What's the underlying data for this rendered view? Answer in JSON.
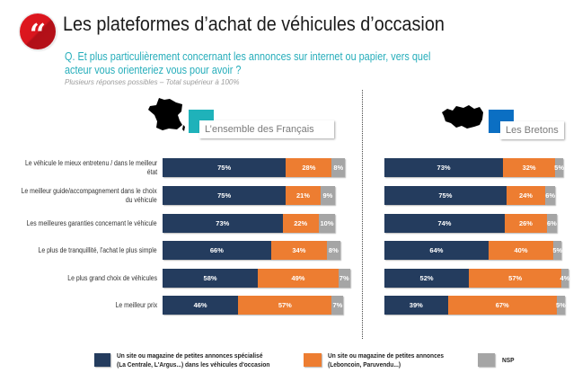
{
  "header": {
    "icon": "quote-icon",
    "title": "Les plateformes d’achat de véhicules d’occasion",
    "question_lines": [
      "Q. Et plus particulièrement concernant les annonces sur internet ou papier, vers quel",
      "acteur vous orienteriez vous pour avoir ?"
    ],
    "note": "Plusieurs réponses possibles – Total supérieur à 100%"
  },
  "panel_headers": [
    {
      "map_icon": "france-map-icon",
      "accent_color": "#1fb2ba"
    },
    {
      "map_icon": "brittany-map-icon",
      "accent_color": "#0b6fc3"
    }
  ],
  "chart_data": {
    "type": "bar",
    "orientation": "horizontal",
    "stacked": true,
    "value_suffix": "%",
    "categories": [
      "Le véhicule le mieux entretenu / dans le meilleur\nétat",
      "Le meilleur guide/accompagnement dans le choix\ndu véhicule",
      "Les meilleures garanties concernant le véhicule",
      "Le plus de tranquillité, l'achat le plus simple",
      "Le plus grand choix de véhicules",
      "Le meilleur prix"
    ],
    "series": [
      {
        "name": "Un site ou magazine de petites annonces spécialisé\n(La Centrale, L'Argus...) dans les véhicules d'occasion",
        "color": "#243c5e"
      },
      {
        "name": "Un site ou magazine de petites annonces\n(Leboncoin, Paruvendu...)",
        "color": "#ed7d31"
      },
      {
        "name": "NSP",
        "color": "#a5a5a5"
      }
    ],
    "panels": [
      {
        "title": "L’ensemble des Français",
        "values": [
          [
            75,
            75,
            73,
            66,
            58,
            46
          ],
          [
            28,
            21,
            22,
            34,
            49,
            57
          ],
          [
            8,
            9,
            10,
            8,
            7,
            7
          ]
        ]
      },
      {
        "title": "Les Bretons",
        "values": [
          [
            73,
            75,
            74,
            64,
            52,
            39
          ],
          [
            32,
            24,
            26,
            40,
            57,
            67
          ],
          [
            5,
            6,
            6,
            5,
            4,
            5
          ]
        ]
      }
    ],
    "legend_position": "bottom"
  }
}
